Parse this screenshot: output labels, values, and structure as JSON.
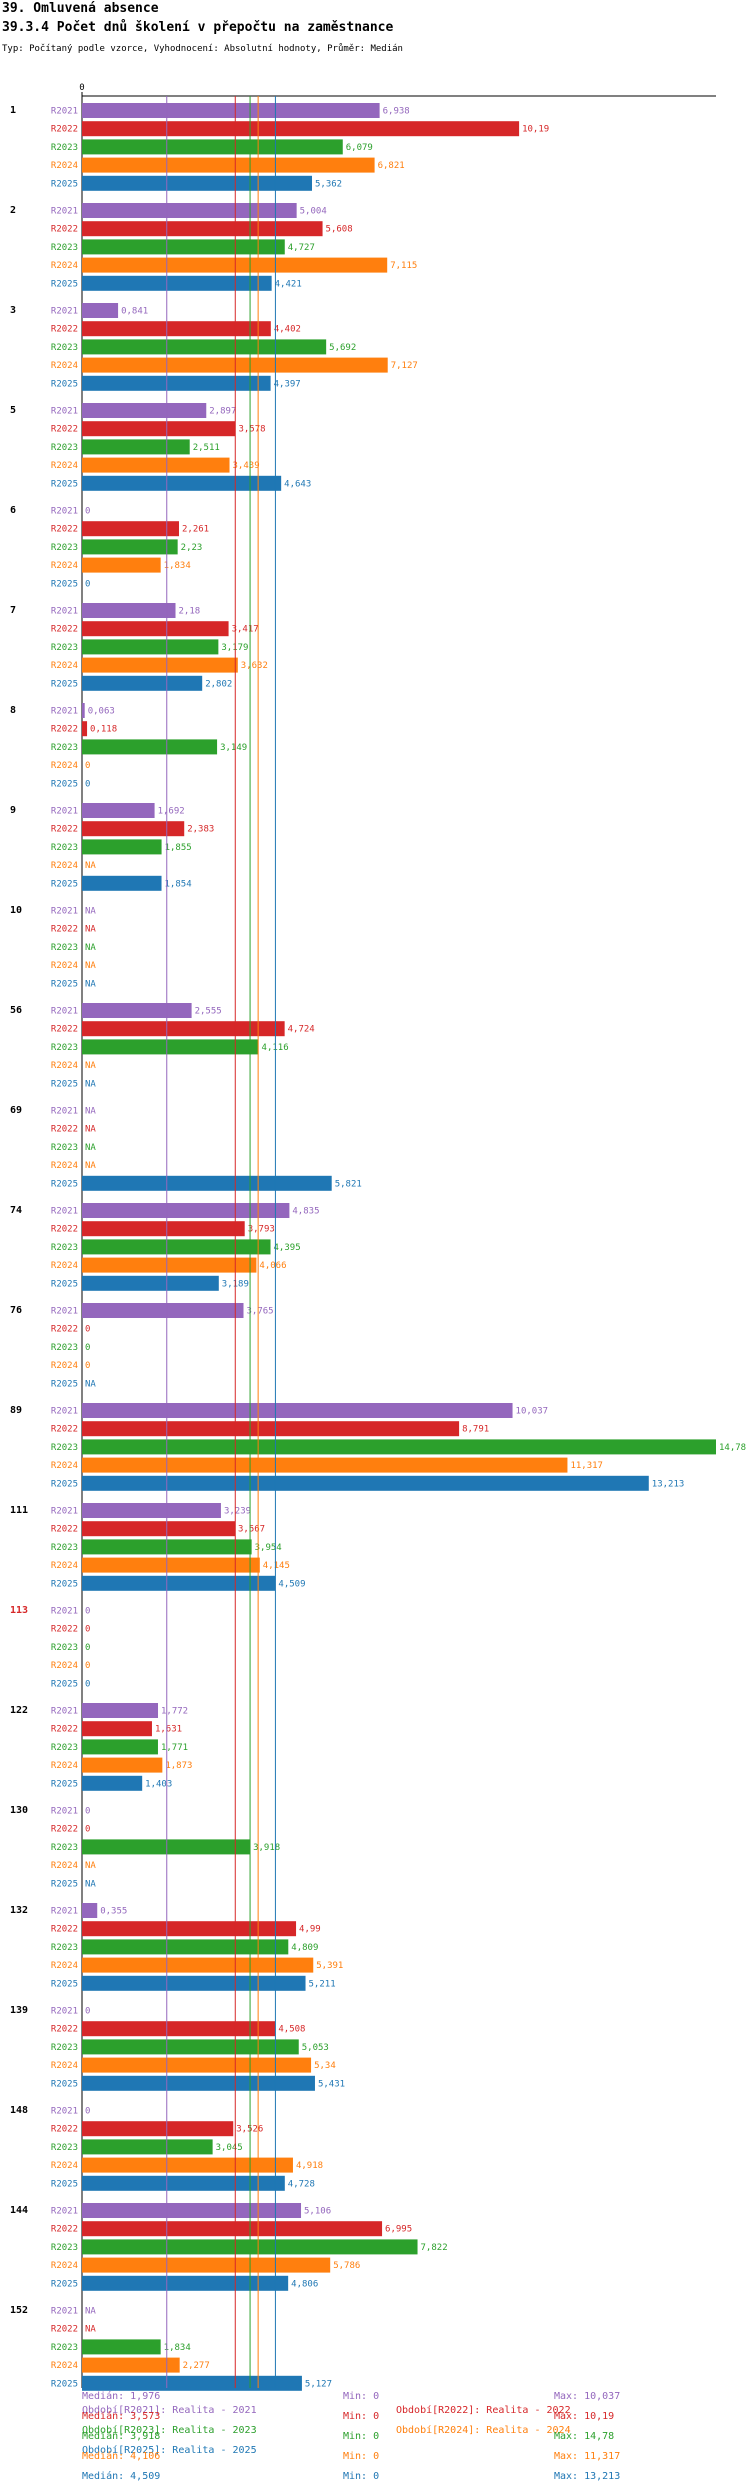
{
  "header": {
    "title": "39. Omluvená absence",
    "subtitle": "39.3.4 Počet dnů školení v přepočtu na zaměstnance",
    "description": "Typ: Počítaný podle vzorce, Vyhodnocení: Absolutní hodnoty, Průměr: Medián"
  },
  "chart_data": {
    "type": "bar",
    "orientation": "horizontal",
    "x_tick_label": "0",
    "xlim": [
      0,
      14.78
    ],
    "series": [
      {
        "name": "R2021",
        "color": "#9467bd"
      },
      {
        "name": "R2022",
        "color": "#d62728"
      },
      {
        "name": "R2023",
        "color": "#2ca02c"
      },
      {
        "name": "R2024",
        "color": "#ff7f0e"
      },
      {
        "name": "R2025",
        "color": "#1f77b4"
      }
    ],
    "categories": [
      {
        "label": "1",
        "highlight": false,
        "values": [
          6.938,
          10.19,
          6.079,
          6.821,
          5.362
        ],
        "labels": [
          "6,938",
          "10,19",
          "6,079",
          "6,821",
          "5,362"
        ]
      },
      {
        "label": "2",
        "highlight": false,
        "values": [
          5.004,
          5.608,
          4.727,
          7.115,
          4.421
        ],
        "labels": [
          "5,004",
          "5,608",
          "4,727",
          "7,115",
          "4,421"
        ]
      },
      {
        "label": "3",
        "highlight": false,
        "values": [
          0.841,
          4.402,
          5.692,
          7.127,
          4.397
        ],
        "labels": [
          "0,841",
          "4,402",
          "5,692",
          "7,127",
          "4,397"
        ]
      },
      {
        "label": "5",
        "highlight": false,
        "values": [
          2.897,
          3.578,
          2.511,
          3.439,
          4.643
        ],
        "labels": [
          "2,897",
          "3,578",
          "2,511",
          "3,439",
          "4,643"
        ]
      },
      {
        "label": "6",
        "highlight": false,
        "values": [
          0,
          2.261,
          2.23,
          1.834,
          0
        ],
        "labels": [
          "0",
          "2,261",
          "2,23",
          "1,834",
          "0"
        ]
      },
      {
        "label": "7",
        "highlight": false,
        "values": [
          2.18,
          3.417,
          3.179,
          3.632,
          2.802
        ],
        "labels": [
          "2,18",
          "3,417",
          "3,179",
          "3,632",
          "2,802"
        ]
      },
      {
        "label": "8",
        "highlight": false,
        "values": [
          0.063,
          0.118,
          3.149,
          0,
          0
        ],
        "labels": [
          "0,063",
          "0,118",
          "3,149",
          "0",
          "0"
        ]
      },
      {
        "label": "9",
        "highlight": false,
        "values": [
          1.692,
          2.383,
          1.855,
          null,
          1.854
        ],
        "labels": [
          "1,692",
          "2,383",
          "1,855",
          "NA",
          "1,854"
        ]
      },
      {
        "label": "10",
        "highlight": false,
        "values": [
          null,
          null,
          null,
          null,
          null
        ],
        "labels": [
          "NA",
          "NA",
          "NA",
          "NA",
          "NA"
        ]
      },
      {
        "label": "56",
        "highlight": false,
        "values": [
          2.555,
          4.724,
          4.116,
          null,
          null
        ],
        "labels": [
          "2,555",
          "4,724",
          "4,116",
          "NA",
          "NA"
        ]
      },
      {
        "label": "69",
        "highlight": false,
        "values": [
          null,
          null,
          null,
          null,
          5.821
        ],
        "labels": [
          "NA",
          "NA",
          "NA",
          "NA",
          "5,821"
        ]
      },
      {
        "label": "74",
        "highlight": false,
        "values": [
          4.835,
          3.793,
          4.395,
          4.066,
          3.189
        ],
        "labels": [
          "4,835",
          "3,793",
          "4,395",
          "4,066",
          "3,189"
        ]
      },
      {
        "label": "76",
        "highlight": false,
        "values": [
          3.765,
          0,
          0,
          0,
          null
        ],
        "labels": [
          "3,765",
          "0",
          "0",
          "0",
          "NA"
        ]
      },
      {
        "label": "89",
        "highlight": false,
        "values": [
          10.037,
          8.791,
          14.78,
          11.317,
          13.213
        ],
        "labels": [
          "10,037",
          "8,791",
          "14,78",
          "11,317",
          "13,213"
        ]
      },
      {
        "label": "111",
        "highlight": false,
        "values": [
          3.239,
          3.567,
          3.954,
          4.145,
          4.509
        ],
        "labels": [
          "3,239",
          "3,567",
          "3,954",
          "4,145",
          "4,509"
        ]
      },
      {
        "label": "113",
        "highlight": true,
        "values": [
          0,
          0,
          0,
          0,
          0
        ],
        "labels": [
          "0",
          "0",
          "0",
          "0",
          "0"
        ]
      },
      {
        "label": "122",
        "highlight": false,
        "values": [
          1.772,
          1.631,
          1.771,
          1.873,
          1.403
        ],
        "labels": [
          "1,772",
          "1,631",
          "1,771",
          "1,873",
          "1,403"
        ]
      },
      {
        "label": "130",
        "highlight": false,
        "values": [
          0,
          0,
          3.918,
          null,
          null
        ],
        "labels": [
          "0",
          "0",
          "3,918",
          "NA",
          "NA"
        ]
      },
      {
        "label": "132",
        "highlight": false,
        "values": [
          0.355,
          4.99,
          4.809,
          5.391,
          5.211
        ],
        "labels": [
          "0,355",
          "4,99",
          "4,809",
          "5,391",
          "5,211"
        ]
      },
      {
        "label": "139",
        "highlight": false,
        "values": [
          0,
          4.508,
          5.053,
          5.34,
          5.431
        ],
        "labels": [
          "0",
          "4,508",
          "5,053",
          "5,34",
          "5,431"
        ]
      },
      {
        "label": "148",
        "highlight": false,
        "values": [
          0,
          3.526,
          3.045,
          4.918,
          4.728
        ],
        "labels": [
          "0",
          "3,526",
          "3,045",
          "4,918",
          "4,728"
        ]
      },
      {
        "label": "144",
        "highlight": false,
        "values": [
          5.106,
          6.995,
          7.822,
          5.786,
          4.806
        ],
        "labels": [
          "5,106",
          "6,995",
          "7,822",
          "5,786",
          "4,806"
        ]
      },
      {
        "label": "152",
        "highlight": false,
        "values": [
          null,
          null,
          1.834,
          2.277,
          5.127
        ],
        "labels": [
          "NA",
          "NA",
          "1,834",
          "2,277",
          "5,127"
        ]
      }
    ],
    "median_lines": [
      1.976,
      3.573,
      3.918,
      4.106,
      4.509
    ]
  },
  "legend": {
    "periods": [
      {
        "text": "Období[R2021]: Realita - 2021",
        "color": "#9467bd"
      },
      {
        "text": "Období[R2022]: Realita - 2022",
        "color": "#d62728"
      },
      {
        "text": "Období[R2023]: Realita - 2023",
        "color": "#2ca02c"
      },
      {
        "text": "Období[R2024]: Realita - 2024",
        "color": "#ff7f0e"
      },
      {
        "text": "Období[R2025]: Realita - 2025",
        "color": "#1f77b4"
      }
    ],
    "stats": [
      {
        "median": "Medián: 1,976",
        "min": "Min: 0",
        "max": "Max: 10,037",
        "color": "#9467bd"
      },
      {
        "median": "Medián: 3,573",
        "min": "Min: 0",
        "max": "Max: 10,19",
        "color": "#d62728"
      },
      {
        "median": "Medián: 3,918",
        "min": "Min: 0",
        "max": "Max: 14,78",
        "color": "#2ca02c"
      },
      {
        "median": "Medián: 4,106",
        "min": "Min: 0",
        "max": "Max: 11,317",
        "color": "#ff7f0e"
      },
      {
        "median": "Medián: 4,509",
        "min": "Min: 0",
        "max": "Max: 13,213",
        "color": "#1f77b4"
      }
    ]
  }
}
